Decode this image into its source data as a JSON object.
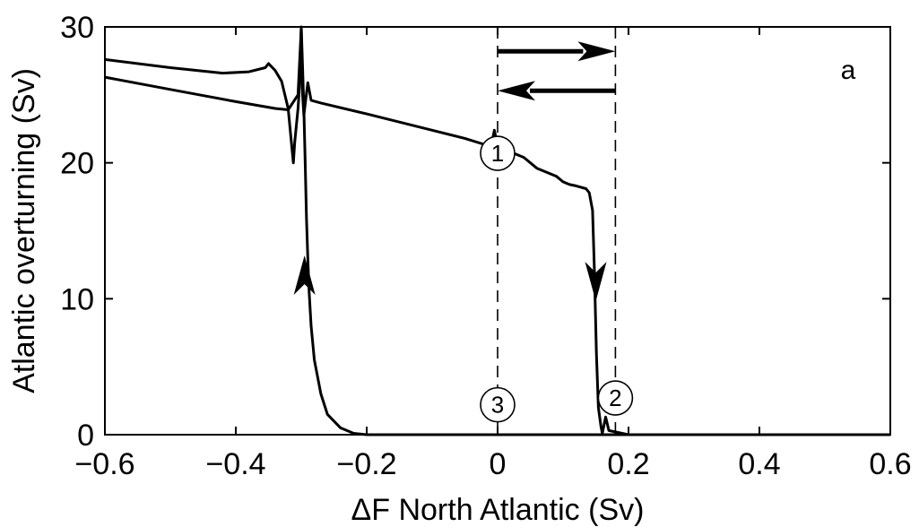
{
  "chart_data": {
    "type": "line",
    "panel_label": "a",
    "xlabel": "ΔF North Atlantic (Sv)",
    "ylabel": "Atlantic overturning (Sv)",
    "xlim": [
      -0.6,
      0.6
    ],
    "ylim": [
      0,
      30
    ],
    "x_ticks": [
      -0.6,
      -0.4,
      -0.2,
      0,
      0.2,
      0.4,
      0.6
    ],
    "x_tick_labels": [
      "−0.6",
      "−0.4",
      "−0.2",
      "0",
      "0.2",
      "0.4",
      "0.6"
    ],
    "y_ticks": [
      0,
      10,
      20,
      30
    ],
    "y_tick_labels": [
      "0",
      "10",
      "20",
      "30"
    ],
    "grid": false,
    "vertical_dashed_lines": [
      0,
      0.18
    ],
    "series": [
      {
        "points": [
          [
            -0.6,
            26.3
          ],
          [
            -0.5,
            25.4
          ],
          [
            -0.4,
            24.5
          ],
          [
            -0.34,
            24.0
          ],
          [
            -0.32,
            23.9
          ],
          [
            -0.305,
            25.0
          ],
          [
            -0.3,
            29.9
          ],
          [
            -0.298,
            25.0
          ],
          [
            -0.296,
            23.5
          ],
          [
            -0.29,
            25.9
          ],
          [
            -0.285,
            24.6
          ],
          [
            -0.27,
            24.4
          ],
          [
            -0.2,
            23.6
          ],
          [
            -0.1,
            22.4
          ],
          [
            -0.05,
            21.8
          ],
          [
            -0.01,
            21.2
          ],
          [
            -0.005,
            22.4
          ],
          [
            0.0,
            21.2
          ],
          [
            0.04,
            20.4
          ],
          [
            0.06,
            19.6
          ],
          [
            0.08,
            19.2
          ],
          [
            0.09,
            19.0
          ],
          [
            0.1,
            18.6
          ],
          [
            0.11,
            18.4
          ],
          [
            0.12,
            18.3
          ],
          [
            0.135,
            18.1
          ],
          [
            0.14,
            17.8
          ],
          [
            0.145,
            16.5
          ],
          [
            0.148,
            12.0
          ],
          [
            0.151,
            6.0
          ],
          [
            0.154,
            2.0
          ],
          [
            0.158,
            0.6
          ],
          [
            0.16,
            0.1
          ],
          [
            0.165,
            1.3
          ],
          [
            0.17,
            0.3
          ],
          [
            0.2,
            0.0
          ],
          [
            0.6,
            0.0
          ]
        ]
      },
      {
        "points": [
          [
            0.6,
            0.0
          ],
          [
            -0.2,
            0.0
          ],
          [
            -0.22,
            0.1
          ],
          [
            -0.24,
            0.5
          ],
          [
            -0.26,
            1.5
          ],
          [
            -0.27,
            3.0
          ],
          [
            -0.28,
            5.5
          ],
          [
            -0.285,
            8.0
          ],
          [
            -0.288,
            10.5
          ],
          [
            -0.29,
            13.0
          ],
          [
            -0.292,
            16.0
          ],
          [
            -0.294,
            20.0
          ],
          [
            -0.296,
            24.0
          ],
          [
            -0.298,
            27.0
          ],
          [
            -0.3,
            30.0
          ],
          [
            -0.302,
            26.0
          ],
          [
            -0.305,
            24.0
          ],
          [
            -0.31,
            21.5
          ],
          [
            -0.312,
            20.0
          ],
          [
            -0.315,
            21.5
          ],
          [
            -0.32,
            24.0
          ],
          [
            -0.33,
            26.0
          ],
          [
            -0.34,
            26.8
          ],
          [
            -0.35,
            27.3
          ],
          [
            -0.355,
            27.0
          ],
          [
            -0.38,
            26.7
          ],
          [
            -0.42,
            26.6
          ],
          [
            -0.5,
            27.0
          ],
          [
            -0.6,
            27.6
          ]
        ]
      }
    ],
    "markers": [
      {
        "label": "1",
        "x": 0.0,
        "y": 20.7
      },
      {
        "label": "2",
        "x": 0.18,
        "y": 2.7
      },
      {
        "label": "3",
        "x": 0.0,
        "y": 2.2
      }
    ],
    "curve_arrows": [
      {
        "x": 0.15,
        "y": 11.0,
        "direction": "down"
      },
      {
        "x": -0.295,
        "y": 12.0,
        "direction": "up"
      }
    ],
    "legend_arrows": [
      {
        "from": 0.0,
        "to": 0.18,
        "y": 28.2,
        "direction": "right"
      },
      {
        "from": 0.18,
        "to": 0.0,
        "y": 25.3,
        "direction": "left"
      }
    ]
  }
}
